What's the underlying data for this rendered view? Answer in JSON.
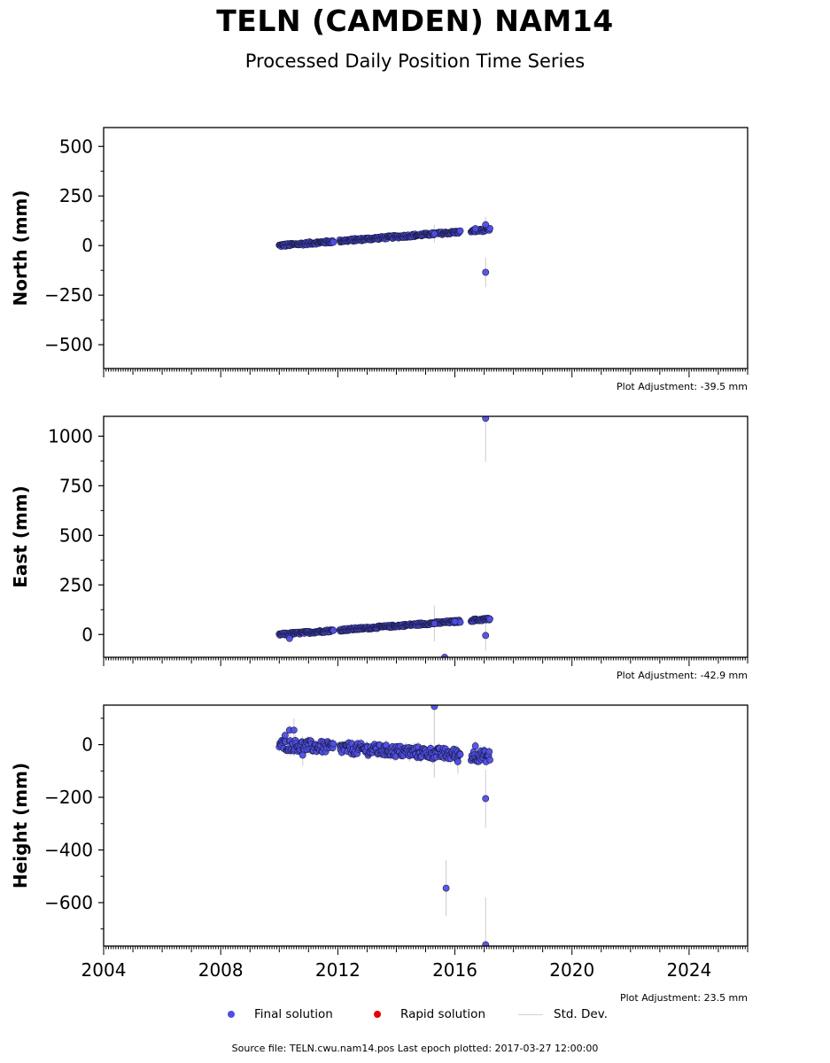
{
  "header": {
    "title": "TELN (CAMDEN) NAM14",
    "subtitle": "Processed Daily Position Time Series"
  },
  "legend": {
    "final_label": "Final solution",
    "rapid_label": "Rapid solution",
    "std_label": "Std. Dev.",
    "final_color": "#4f4fe6",
    "rapid_color": "#e60000",
    "std_color": "#d3d3d3"
  },
  "footer": {
    "source": "Source file: TELN.cwu.nam14.pos  Last epoch plotted: 2017-03-27 12:00:00"
  },
  "chart_data": [
    {
      "type": "scatter",
      "ylabel": "North (mm)",
      "adjustment": "Plot Adjustment: -39.5 mm",
      "xlim": [
        2004,
        2026
      ],
      "ylim": [
        -620,
        595
      ],
      "yticks": [
        -500,
        -250,
        0,
        250,
        500
      ],
      "ytick_labels": [
        "−500",
        "−250",
        "0",
        "250",
        "500"
      ],
      "trend": [
        [
          2010.0,
          0
        ],
        [
          2017.2,
          80
        ]
      ],
      "spread": 7,
      "outliers": [
        {
          "x": 2016.7,
          "y": 85,
          "err": 20
        },
        {
          "x": 2017.05,
          "y": 105,
          "err": 40
        },
        {
          "x": 2017.05,
          "y": -135,
          "err": 75
        },
        {
          "x": 2015.3,
          "y": 60,
          "err": 45
        }
      ]
    },
    {
      "type": "scatter",
      "ylabel": "East (mm)",
      "adjustment": "Plot Adjustment: -42.9 mm",
      "xlim": [
        2004,
        2026
      ],
      "ylim": [
        -115,
        1100
      ],
      "yticks": [
        0,
        250,
        500,
        750,
        1000
      ],
      "ytick_labels": [
        "0",
        "250",
        "500",
        "750",
        "1000"
      ],
      "trend": [
        [
          2010.0,
          0
        ],
        [
          2017.2,
          78
        ]
      ],
      "spread": 6,
      "outliers": [
        {
          "x": 2010.35,
          "y": -20,
          "err": 8
        },
        {
          "x": 2017.05,
          "y": 1090,
          "err": 220
        },
        {
          "x": 2017.05,
          "y": -5,
          "err": 75
        },
        {
          "x": 2015.3,
          "y": 55,
          "err": 90
        },
        {
          "x": 2015.65,
          "y": -115,
          "err": 10
        },
        {
          "x": 2016.0,
          "y": 65,
          "err": 10
        }
      ]
    },
    {
      "type": "scatter",
      "ylabel": "Height (mm)",
      "adjustment": "Plot Adjustment: 23.5 mm",
      "xlim": [
        2004,
        2026
      ],
      "ylim": [
        -765,
        150
      ],
      "yticks": [
        -600,
        -400,
        -200,
        0
      ],
      "ytick_labels": [
        "−600",
        "−400",
        "−200",
        "0"
      ],
      "xticks": [
        2004,
        2008,
        2012,
        2016,
        2020,
        2024
      ],
      "xtick_labels": [
        "2004",
        "2008",
        "2012",
        "2016",
        "2020",
        "2024"
      ],
      "trend": [
        [
          2010.0,
          0
        ],
        [
          2017.2,
          -45
        ]
      ],
      "spread": 22,
      "outliers": [
        {
          "x": 2010.35,
          "y": 55,
          "err": 20
        },
        {
          "x": 2010.5,
          "y": 55,
          "err": 45
        },
        {
          "x": 2010.2,
          "y": 35,
          "err": 20
        },
        {
          "x": 2010.8,
          "y": -40,
          "err": 40
        },
        {
          "x": 2015.3,
          "y": 145,
          "err": 270
        },
        {
          "x": 2015.7,
          "y": -545,
          "err": 105
        },
        {
          "x": 2016.1,
          "y": -65,
          "err": 45
        },
        {
          "x": 2017.05,
          "y": -205,
          "err": 110
        },
        {
          "x": 2017.05,
          "y": -760,
          "err": 180
        },
        {
          "x": 2016.7,
          "y": -5,
          "err": 20
        }
      ]
    }
  ]
}
